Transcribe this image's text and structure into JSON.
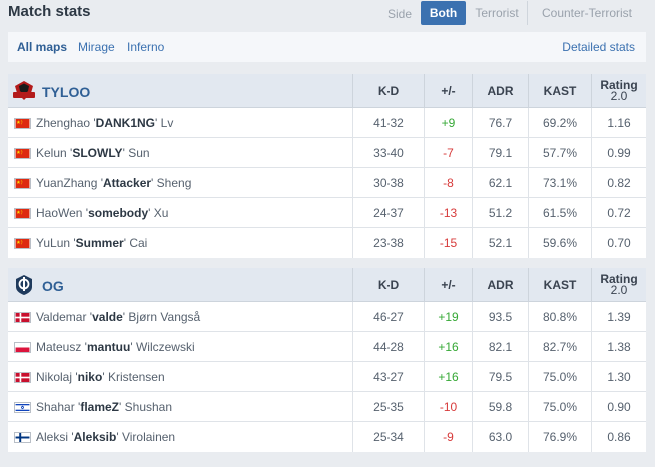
{
  "header": {
    "title": "Match stats",
    "side_label": "Side",
    "sides": [
      "Both",
      "Terrorist",
      "Counter-Terrorist"
    ]
  },
  "maps": {
    "tabs": [
      "All maps",
      "Mirage",
      "Inferno"
    ],
    "detailed_link": "Detailed stats"
  },
  "columns": {
    "kd": "K-D",
    "pm": "+/-",
    "adr": "ADR",
    "kast": "KAST",
    "rating_line1": "Rating",
    "rating_line2": "2.0"
  },
  "colors": {
    "accent": "#3b71b0",
    "positive": "#36a836",
    "negative": "#d73a3a"
  },
  "teams": [
    {
      "name": "TYLOO",
      "logo_icon": "tyloo-logo",
      "players": [
        {
          "first": "Zhenghao '",
          "nick": "DANK1NG",
          "last": "' Lv",
          "flag": "cn",
          "kd": "41-32",
          "pm": "+9",
          "adr": "76.7",
          "kast": "69.2%",
          "rating": "1.16"
        },
        {
          "first": "Kelun '",
          "nick": "SLOWLY",
          "last": "' Sun",
          "flag": "cn",
          "kd": "33-40",
          "pm": "-7",
          "adr": "79.1",
          "kast": "57.7%",
          "rating": "0.99"
        },
        {
          "first": "YuanZhang '",
          "nick": "Attacker",
          "last": "' Sheng",
          "flag": "cn",
          "kd": "30-38",
          "pm": "-8",
          "adr": "62.1",
          "kast": "73.1%",
          "rating": "0.82"
        },
        {
          "first": "HaoWen '",
          "nick": "somebody",
          "last": "' Xu",
          "flag": "cn",
          "kd": "24-37",
          "pm": "-13",
          "adr": "51.2",
          "kast": "61.5%",
          "rating": "0.72"
        },
        {
          "first": "YuLun '",
          "nick": "Summer",
          "last": "' Cai",
          "flag": "cn",
          "kd": "23-38",
          "pm": "-15",
          "adr": "52.1",
          "kast": "59.6%",
          "rating": "0.70"
        }
      ]
    },
    {
      "name": "OG",
      "logo_icon": "og-logo",
      "players": [
        {
          "first": "Valdemar '",
          "nick": "valde",
          "last": "' Bjørn Vangså",
          "flag": "dk",
          "kd": "46-27",
          "pm": "+19",
          "adr": "93.5",
          "kast": "80.8%",
          "rating": "1.39"
        },
        {
          "first": "Mateusz '",
          "nick": "mantuu",
          "last": "' Wilczewski",
          "flag": "pl",
          "kd": "44-28",
          "pm": "+16",
          "adr": "82.1",
          "kast": "82.7%",
          "rating": "1.38"
        },
        {
          "first": "Nikolaj '",
          "nick": "niko",
          "last": "' Kristensen",
          "flag": "dk",
          "kd": "43-27",
          "pm": "+16",
          "adr": "79.5",
          "kast": "75.0%",
          "rating": "1.30"
        },
        {
          "first": "Shahar '",
          "nick": "flameZ",
          "last": "' Shushan",
          "flag": "il",
          "kd": "25-35",
          "pm": "-10",
          "adr": "59.8",
          "kast": "75.0%",
          "rating": "0.90"
        },
        {
          "first": "Aleksi '",
          "nick": "Aleksib",
          "last": "' Virolainen",
          "flag": "fi",
          "kd": "25-34",
          "pm": "-9",
          "adr": "63.0",
          "kast": "76.9%",
          "rating": "0.86"
        }
      ]
    }
  ]
}
